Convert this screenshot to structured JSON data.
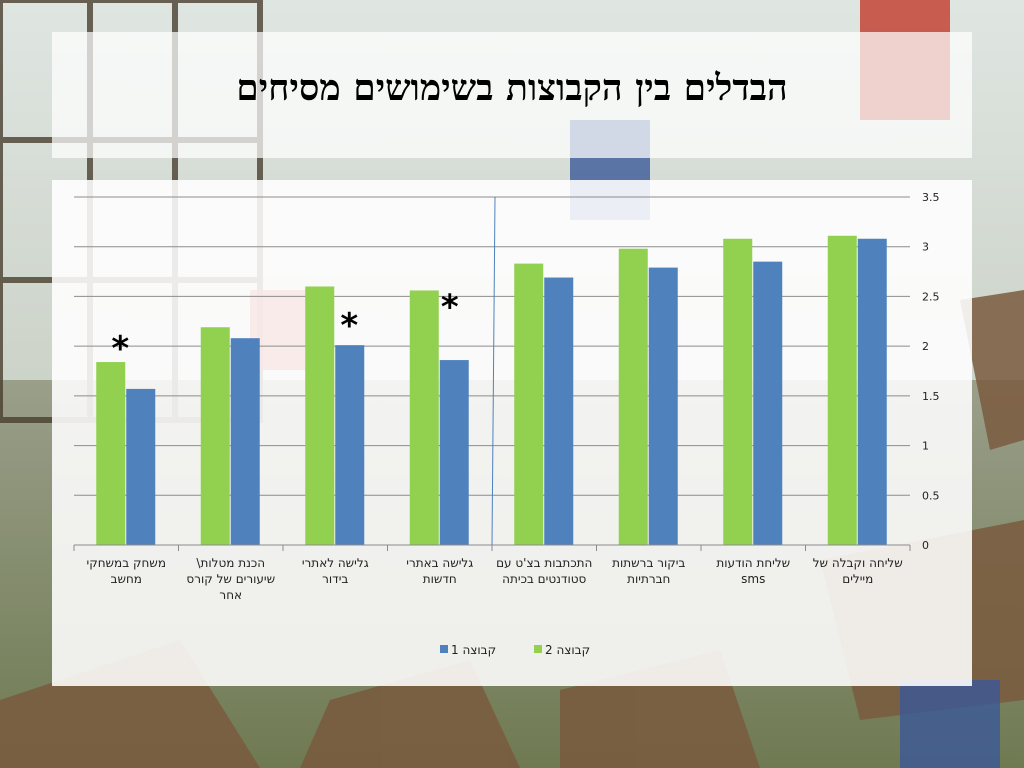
{
  "slide": {
    "title": "הבדלים בין הקבוצות בשימושים מסיחים"
  },
  "colors": {
    "group1": "#4f81bd",
    "group2": "#92d050",
    "grid": "#8c8c8c",
    "divider": "#4f81bd"
  },
  "chart_data": {
    "type": "bar",
    "title": "",
    "xlabel": "",
    "ylabel": "",
    "ylim": [
      0,
      3.5
    ],
    "yticks": [
      "0",
      "0.5",
      "1",
      "1.5",
      "2",
      "2.5",
      "3",
      "3.5"
    ],
    "y_axis_side": "right",
    "category_order": "right-to-left",
    "grid": true,
    "legend_position": "bottom",
    "categories": [
      [
        "שליחה וקבלה של",
        "מיילים"
      ],
      [
        "שליחת הודעות",
        "sms"
      ],
      [
        "ביקור ברשתות",
        "חברתיות"
      ],
      [
        "התכתבות בצ'ט עם",
        "סטודנטים בכיתה"
      ],
      [
        "גלישה באתרי",
        "חדשות"
      ],
      [
        "גלישה לאתרי",
        "בידור"
      ],
      [
        "הכנת מטלות\\",
        "שיעורים של קורס",
        "אחר"
      ],
      [
        "משחק במשחקי",
        "מחשב"
      ]
    ],
    "series": [
      {
        "name": "קבוצה 2",
        "values": [
          3.11,
          3.08,
          2.98,
          2.83,
          2.56,
          2.6,
          2.19,
          1.84
        ]
      },
      {
        "name": "קבוצה 1",
        "values": [
          3.08,
          2.85,
          2.79,
          2.69,
          1.86,
          2.01,
          2.08,
          1.57
        ]
      }
    ],
    "annotations": [
      {
        "text": "*",
        "category_index": 4
      },
      {
        "text": "*",
        "category_index": 5
      },
      {
        "text": "*",
        "category_index": 7
      }
    ]
  }
}
